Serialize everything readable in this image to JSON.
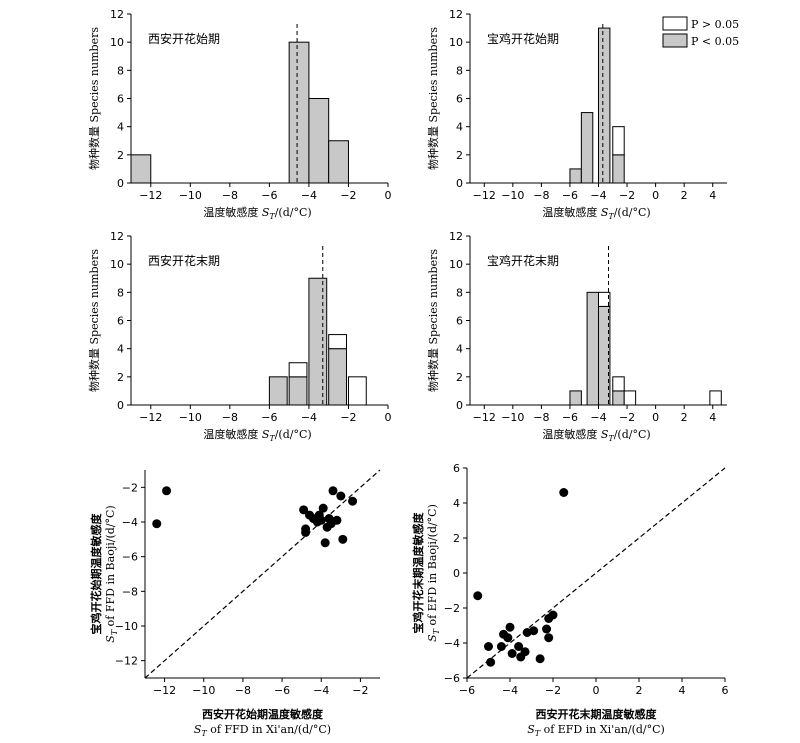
{
  "colors": {
    "sig": "#c8c8c8",
    "nonsig": "#ffffff",
    "stroke": "#000000",
    "point": "#000000"
  },
  "legend": {
    "items": [
      {
        "label": "P > 0.05",
        "color": "#ffffff"
      },
      {
        "label": "P < 0.05",
        "color": "#c8c8c8"
      }
    ]
  },
  "chart_data": [
    {
      "type": "bar",
      "id": "h1",
      "title": "西安开花始期",
      "ylabel": "物种数量 Species numbers",
      "xlabel": "温度敏感度 ST/(d/°C)",
      "xlim": [
        -13,
        0
      ],
      "ylim": [
        0,
        12
      ],
      "xticks": [
        "-12",
        "-10",
        "-8",
        "-6",
        "-4",
        "-2",
        "0"
      ],
      "yticks": [
        "0",
        "2",
        "4",
        "6",
        "8",
        "10",
        "12"
      ],
      "bin_width": 1,
      "mean": -4.6,
      "bars": [
        {
          "x0": -13,
          "sig": 2,
          "nonsig": 0
        },
        {
          "x0": -5,
          "sig": 10,
          "nonsig": 0
        },
        {
          "x0": -4,
          "sig": 6,
          "nonsig": 0
        },
        {
          "x0": -3,
          "sig": 3,
          "nonsig": 0
        }
      ]
    },
    {
      "type": "bar",
      "id": "h2",
      "title": "宝鸡开花始期",
      "ylabel": "物种数量 Species numbers",
      "xlabel": "温度敏感度 ST/(d/°C)",
      "xlim": [
        -13,
        5
      ],
      "ylim": [
        0,
        12
      ],
      "xticks": [
        "-12",
        "-10",
        "-8",
        "-6",
        "-4",
        "-2",
        "0",
        "2",
        "4"
      ],
      "yticks": [
        "0",
        "2",
        "4",
        "6",
        "8",
        "10",
        "12"
      ],
      "bin_width": 0.8,
      "mean": -3.7,
      "legend": true,
      "bars": [
        {
          "x0": -6.0,
          "sig": 1,
          "nonsig": 0
        },
        {
          "x0": -5.2,
          "sig": 5,
          "nonsig": 0
        },
        {
          "x0": -4.0,
          "sig": 11,
          "nonsig": 0
        },
        {
          "x0": -3.0,
          "sig": 2,
          "nonsig": 2
        }
      ]
    },
    {
      "type": "bar",
      "id": "h3",
      "title": "西安开花末期",
      "ylabel": "物种数量 Species numbers",
      "xlabel": "温度敏感度 ST/(d/°C)",
      "xlim": [
        -13,
        0
      ],
      "ylim": [
        0,
        12
      ],
      "xticks": [
        "-12",
        "-10",
        "-8",
        "-6",
        "-4",
        "-2",
        "0"
      ],
      "yticks": [
        "0",
        "2",
        "4",
        "6",
        "8",
        "10",
        "12"
      ],
      "bin_width": 0.9,
      "mean": -3.3,
      "bars": [
        {
          "x0": -6.0,
          "sig": 2,
          "nonsig": 0
        },
        {
          "x0": -5.0,
          "sig": 2,
          "nonsig": 1
        },
        {
          "x0": -4.0,
          "sig": 9,
          "nonsig": 0
        },
        {
          "x0": -3.0,
          "sig": 4,
          "nonsig": 1
        },
        {
          "x0": -2.0,
          "sig": 0,
          "nonsig": 2
        }
      ]
    },
    {
      "type": "bar",
      "id": "h4",
      "title": "宝鸡开花末期",
      "ylabel": "物种数量 Species numbers",
      "xlabel": "温度敏感度 ST/(d/°C)",
      "xlim": [
        -13,
        5
      ],
      "ylim": [
        0,
        12
      ],
      "xticks": [
        "-12",
        "-10",
        "-8",
        "-6",
        "-4",
        "-2",
        "0",
        "2",
        "4"
      ],
      "yticks": [
        "0",
        "2",
        "4",
        "6",
        "8",
        "10",
        "12"
      ],
      "bin_width": 0.8,
      "mean": -3.3,
      "bars": [
        {
          "x0": -6.0,
          "sig": 1,
          "nonsig": 0
        },
        {
          "x0": -4.8,
          "sig": 8,
          "nonsig": 0
        },
        {
          "x0": -4.0,
          "sig": 7,
          "nonsig": 1
        },
        {
          "x0": -3.0,
          "sig": 1,
          "nonsig": 1
        },
        {
          "x0": -2.2,
          "sig": 0,
          "nonsig": 1
        },
        {
          "x0": 3.8,
          "sig": 0,
          "nonsig": 1
        }
      ]
    },
    {
      "type": "scatter",
      "id": "s1",
      "ylabel": [
        "宝鸡开花始期温度敏感度",
        "ST of FFD in Baoji/(d/°C)"
      ],
      "xlabel": [
        "西安开花始期温度敏感度",
        "ST of FFD in Xi'an/(d/°C)"
      ],
      "xlim": [
        -13,
        -1
      ],
      "ylim": [
        -13,
        -1
      ],
      "xticks": [
        -12,
        -10,
        -8,
        -6,
        -4,
        -2
      ],
      "yticks": [
        -12,
        -10,
        -8,
        -6,
        -4,
        -2
      ],
      "points": [
        [
          -12.4,
          -4.1
        ],
        [
          -11.9,
          -2.2
        ],
        [
          -4.9,
          -3.3
        ],
        [
          -4.8,
          -4.4
        ],
        [
          -4.6,
          -3.6
        ],
        [
          -4.4,
          -3.8
        ],
        [
          -4.2,
          -4.0
        ],
        [
          -4.1,
          -3.6
        ],
        [
          -4.0,
          -3.9
        ],
        [
          -3.9,
          -3.2
        ],
        [
          -3.8,
          -5.2
        ],
        [
          -3.7,
          -4.3
        ],
        [
          -3.6,
          -3.8
        ],
        [
          -3.5,
          -4.1
        ],
        [
          -3.4,
          -2.2
        ],
        [
          -3.2,
          -3.9
        ],
        [
          -3.0,
          -2.5
        ],
        [
          -2.9,
          -5.0
        ],
        [
          -2.4,
          -2.8
        ],
        [
          -4.8,
          -4.6
        ]
      ]
    },
    {
      "type": "scatter",
      "id": "s2",
      "ylabel": [
        "宝鸡开花末期温度敏感度",
        "ST of EFD in Baoji/(d/°C)"
      ],
      "xlabel": [
        "西安开花末期温度敏感度",
        "ST of EFD in Xi'an/(d/°C)"
      ],
      "xlim": [
        -6,
        6
      ],
      "ylim": [
        -6,
        6
      ],
      "xticks": [
        -6,
        -4,
        -2,
        0,
        2,
        4,
        6
      ],
      "yticks": [
        -6,
        -4,
        -2,
        0,
        2,
        4,
        6
      ],
      "points": [
        [
          -5.5,
          -1.3
        ],
        [
          -5.0,
          -4.2
        ],
        [
          -4.9,
          -5.1
        ],
        [
          -4.4,
          -4.2
        ],
        [
          -4.3,
          -3.5
        ],
        [
          -4.1,
          -3.7
        ],
        [
          -4.0,
          -3.1
        ],
        [
          -3.9,
          -4.6
        ],
        [
          -3.6,
          -4.2
        ],
        [
          -3.5,
          -4.8
        ],
        [
          -3.3,
          -4.5
        ],
        [
          -3.2,
          -3.4
        ],
        [
          -2.9,
          -3.3
        ],
        [
          -2.6,
          -4.9
        ],
        [
          -2.3,
          -3.2
        ],
        [
          -2.2,
          -3.7
        ],
        [
          -2.2,
          -2.6
        ],
        [
          -2.0,
          -2.4
        ],
        [
          -1.5,
          4.6
        ]
      ]
    }
  ]
}
